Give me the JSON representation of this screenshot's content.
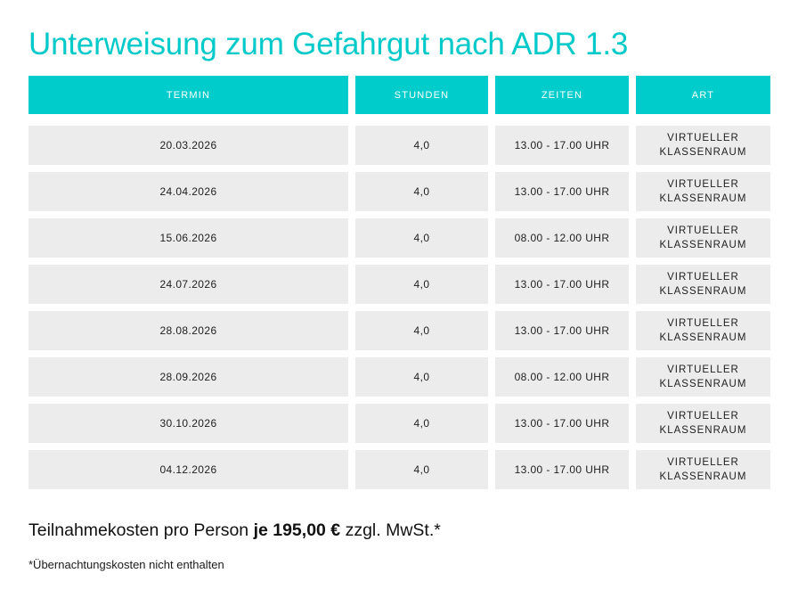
{
  "page": {
    "title": "Unterweisung zum Gefahrgut nach ADR 1.3"
  },
  "colors": {
    "accent": "#00cccc",
    "title": "#00c9c9",
    "cell_background": "#ececec",
    "header_text": "#ffffff"
  },
  "table": {
    "headers": [
      "TERMIN",
      "STUNDEN",
      "ZEITEN",
      "ART"
    ],
    "rows": [
      {
        "termin": "20.03.2026",
        "stunden": "4,0",
        "zeiten": "13.00 - 17.00 UHR",
        "art_line1": "VIRTUELLER",
        "art_line2": "KLASSENRAUM"
      },
      {
        "termin": "24.04.2026",
        "stunden": "4,0",
        "zeiten": "13.00 - 17.00 UHR",
        "art_line1": "VIRTUELLER",
        "art_line2": "KLASSENRAUM"
      },
      {
        "termin": "15.06.2026",
        "stunden": "4,0",
        "zeiten": "08.00 - 12.00 UHR",
        "art_line1": "VIRTUELLER",
        "art_line2": "KLASSENRAUM"
      },
      {
        "termin": "24.07.2026",
        "stunden": "4,0",
        "zeiten": "13.00 - 17.00 UHR",
        "art_line1": "VIRTUELLER",
        "art_line2": "KLASSENRAUM"
      },
      {
        "termin": "28.08.2026",
        "stunden": "4,0",
        "zeiten": "13.00 - 17.00 UHR",
        "art_line1": "VIRTUELLER",
        "art_line2": "KLASSENRAUM"
      },
      {
        "termin": "28.09.2026",
        "stunden": "4,0",
        "zeiten": "08.00 - 12.00 UHR",
        "art_line1": "VIRTUELLER",
        "art_line2": "KLASSENRAUM"
      },
      {
        "termin": "30.10.2026",
        "stunden": "4,0",
        "zeiten": "13.00 - 17.00 UHR",
        "art_line1": "VIRTUELLER",
        "art_line2": "KLASSENRAUM"
      },
      {
        "termin": "04.12.2026",
        "stunden": "4,0",
        "zeiten": "13.00 - 17.00 UHR",
        "art_line1": "VIRTUELLER",
        "art_line2": "KLASSENRAUM"
      }
    ]
  },
  "pricing": {
    "prefix": "Teilnahmekosten pro Person ",
    "price_bold": "je 195,00 €",
    "suffix": " zzgl. MwSt.*"
  },
  "footnote": "*Übernachtungskosten nicht enthalten"
}
